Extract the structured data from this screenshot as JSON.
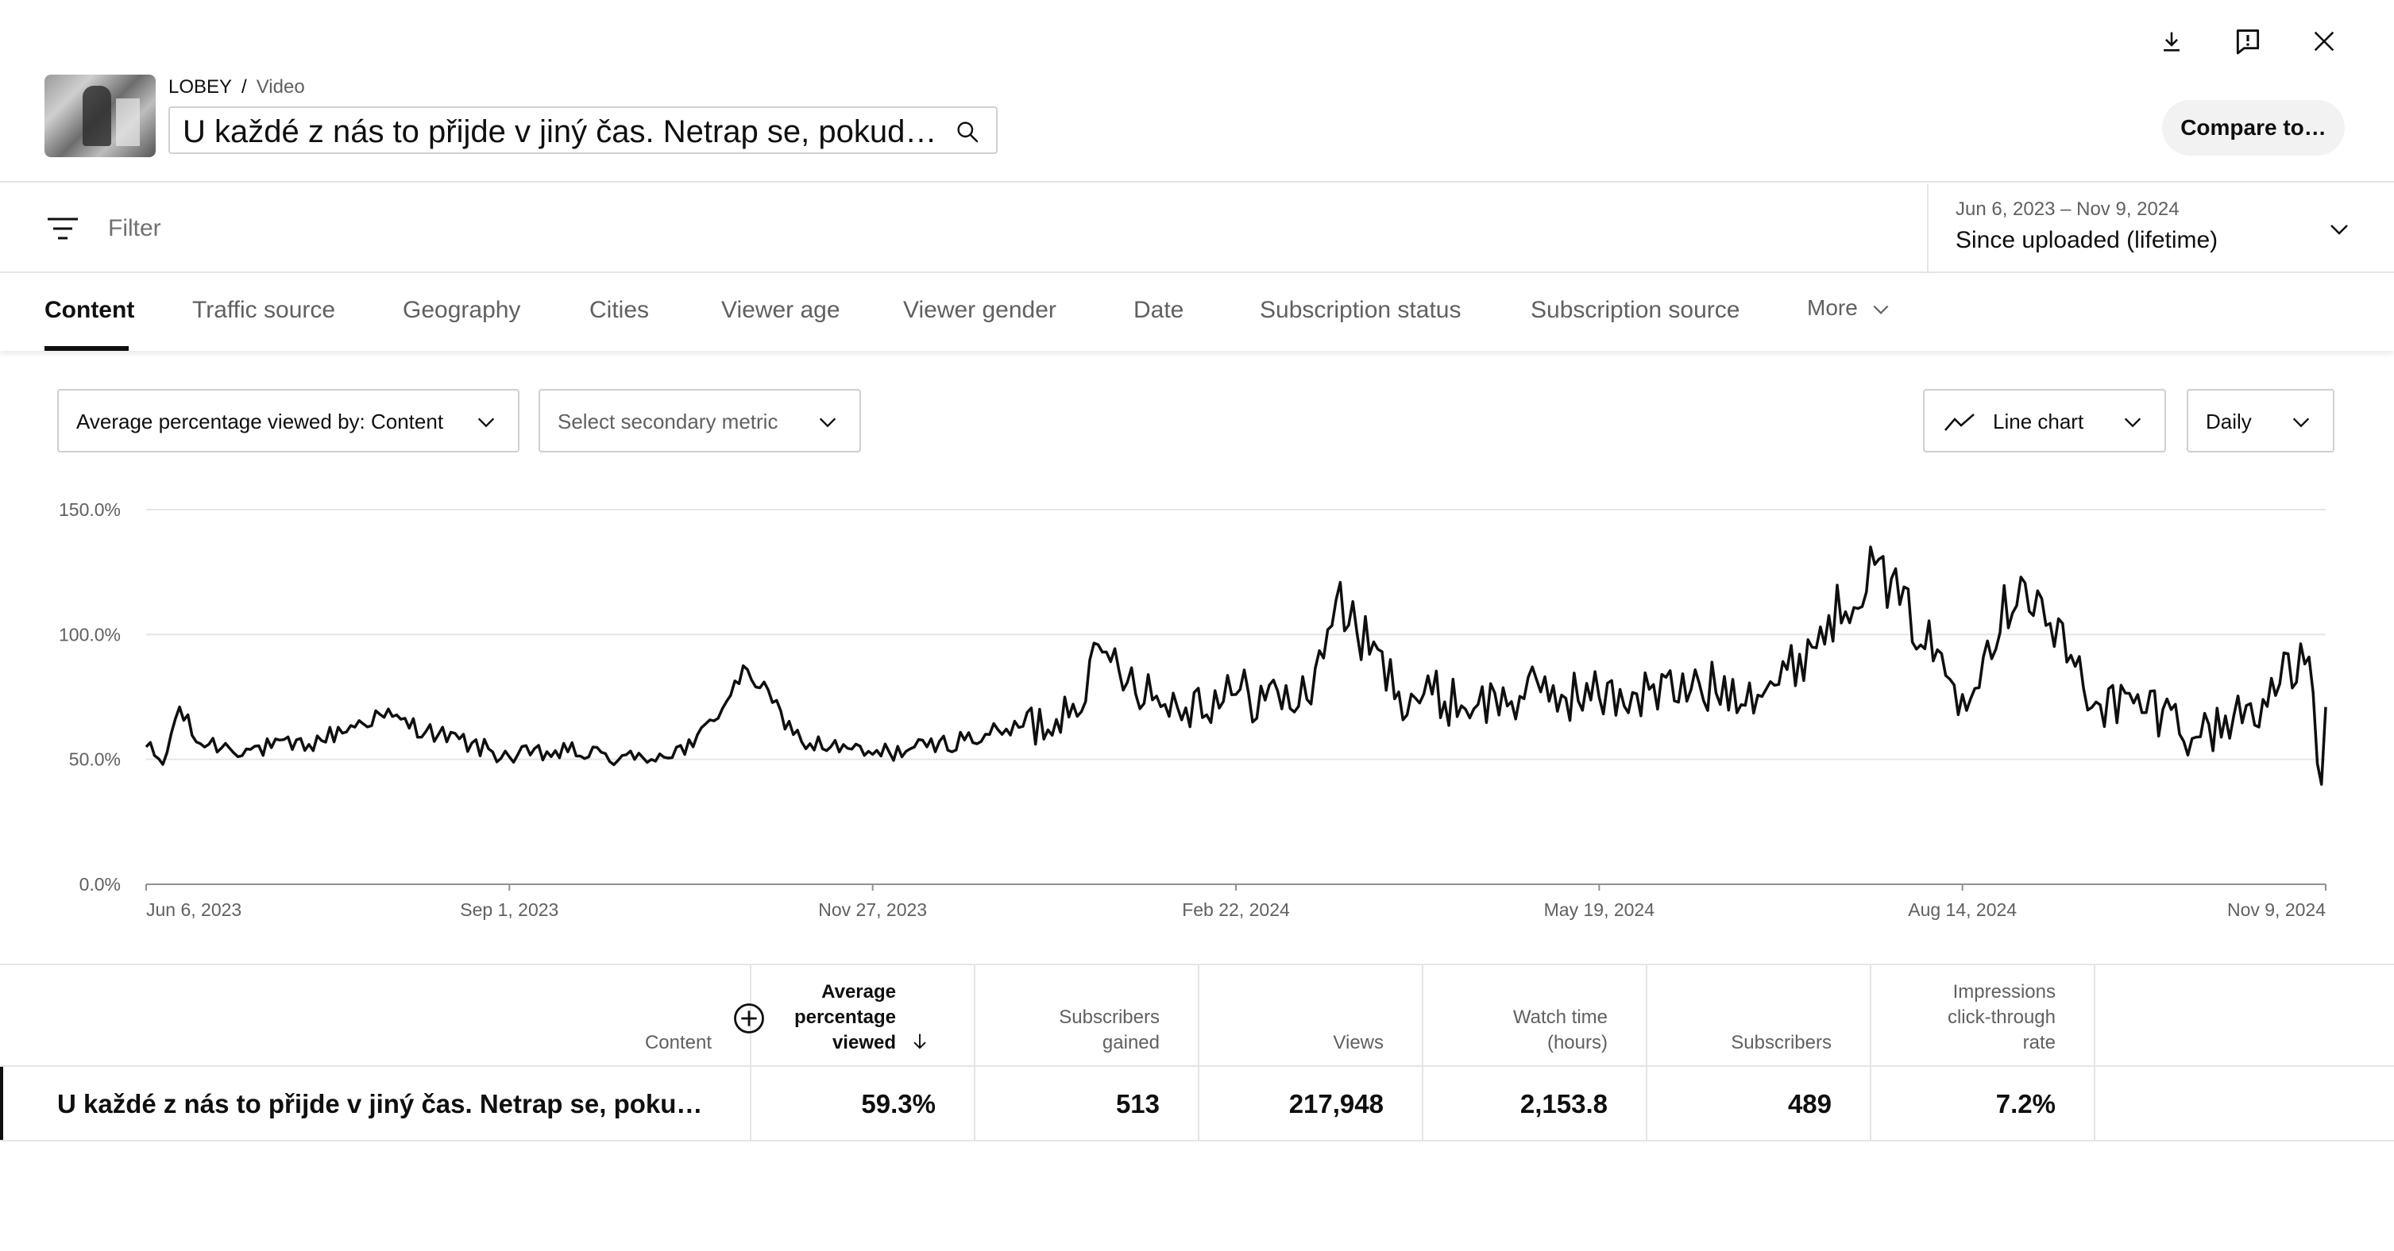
{
  "header": {
    "breadcrumb": {
      "channel": "LOBEY",
      "separator": "/",
      "leaf": "Video"
    },
    "title": "U každé z nás to přijde v jiný čas. Netrap se, pokud tvoje první menstruace zatím nepřišla",
    "compare_label": "Compare to…",
    "icons": [
      "download-icon",
      "feedback-icon",
      "close-icon"
    ]
  },
  "filter": {
    "placeholder": "Filter",
    "date_range": "Jun 6, 2023 – Nov 9, 2024",
    "date_label": "Since uploaded (lifetime)"
  },
  "tabs": [
    {
      "label": "Content",
      "active": true
    },
    {
      "label": "Traffic source"
    },
    {
      "label": "Geography"
    },
    {
      "label": "Cities"
    },
    {
      "label": "Viewer age"
    },
    {
      "label": "Viewer gender"
    },
    {
      "label": "Date"
    },
    {
      "label": "Subscription status"
    },
    {
      "label": "Subscription source"
    },
    {
      "label": "More"
    }
  ],
  "controls": {
    "primary_metric": "Average percentage viewed by: Content",
    "secondary_metric": "Select secondary metric",
    "chart_type": "Line chart",
    "granularity": "Daily"
  },
  "chart_data": {
    "type": "line",
    "x_start": "2023-06-06",
    "x_end": "2024-11-09",
    "xticks": [
      "Jun 6, 2023",
      "Sep 1, 2023",
      "Nov 27, 2023",
      "Feb 22, 2024",
      "May 19, 2024",
      "Aug 14, 2024",
      "Nov 9, 2024"
    ],
    "yticks": [
      "0.0%",
      "50.0%",
      "100.0%",
      "150.0%"
    ],
    "ylim": [
      0,
      150
    ],
    "grid": true,
    "color": "#0f0f0f",
    "series": [
      {
        "keypoints": [
          [
            "2023-06-06",
            55
          ],
          [
            "2023-06-10",
            48
          ],
          [
            "2023-06-14",
            71
          ],
          [
            "2023-06-18",
            57
          ],
          [
            "2023-07-01",
            54
          ],
          [
            "2023-07-15",
            56
          ],
          [
            "2023-08-01",
            68
          ],
          [
            "2023-08-15",
            60
          ],
          [
            "2023-09-01",
            51
          ],
          [
            "2023-09-15",
            53
          ],
          [
            "2023-10-01",
            50
          ],
          [
            "2023-10-15",
            55
          ],
          [
            "2023-10-28",
            86
          ],
          [
            "2023-11-10",
            57
          ],
          [
            "2023-11-27",
            52
          ],
          [
            "2023-12-10",
            55
          ],
          [
            "2023-12-25",
            60
          ],
          [
            "2024-01-10",
            66
          ],
          [
            "2024-01-22",
            93
          ],
          [
            "2024-02-05",
            72
          ],
          [
            "2024-02-22",
            76
          ],
          [
            "2024-03-10",
            74
          ],
          [
            "2024-03-17",
            114
          ],
          [
            "2024-04-01",
            77
          ],
          [
            "2024-04-20",
            72
          ],
          [
            "2024-05-05",
            77
          ],
          [
            "2024-05-19",
            75
          ],
          [
            "2024-06-10",
            78
          ],
          [
            "2024-07-01",
            80
          ],
          [
            "2024-07-24",
            128
          ],
          [
            "2024-08-14",
            76
          ],
          [
            "2024-08-28",
            123
          ],
          [
            "2024-09-15",
            73
          ],
          [
            "2024-10-01",
            70
          ],
          [
            "2024-10-10",
            59
          ],
          [
            "2024-10-25",
            74
          ],
          [
            "2024-11-05",
            91
          ],
          [
            "2024-11-08",
            40
          ],
          [
            "2024-11-09",
            71
          ]
        ]
      }
    ]
  },
  "table": {
    "columns": [
      "Content",
      "Average percentage viewed",
      "Subscribers gained",
      "Views",
      "Watch time (hours)",
      "Subscribers",
      "Impressions click-through rate"
    ],
    "column_lines": [
      [
        "Content"
      ],
      [
        "Average",
        "percentage",
        "viewed"
      ],
      [
        "Subscribers",
        "gained"
      ],
      [
        "Views"
      ],
      [
        "Watch time",
        "(hours)"
      ],
      [
        "Subscribers"
      ],
      [
        "Impressions",
        "click-through",
        "rate"
      ]
    ],
    "rows": [
      {
        "content": "U každé z nás to přijde v jiný čas. Netrap se, pokud tvoje první menstruace zatím nepřišla",
        "avg_pct_viewed": "59.3%",
        "subs_gained": "513",
        "views": "217,948",
        "watch_time": "2,153.8",
        "subscribers": "489",
        "ctr": "7.2%"
      }
    ]
  }
}
